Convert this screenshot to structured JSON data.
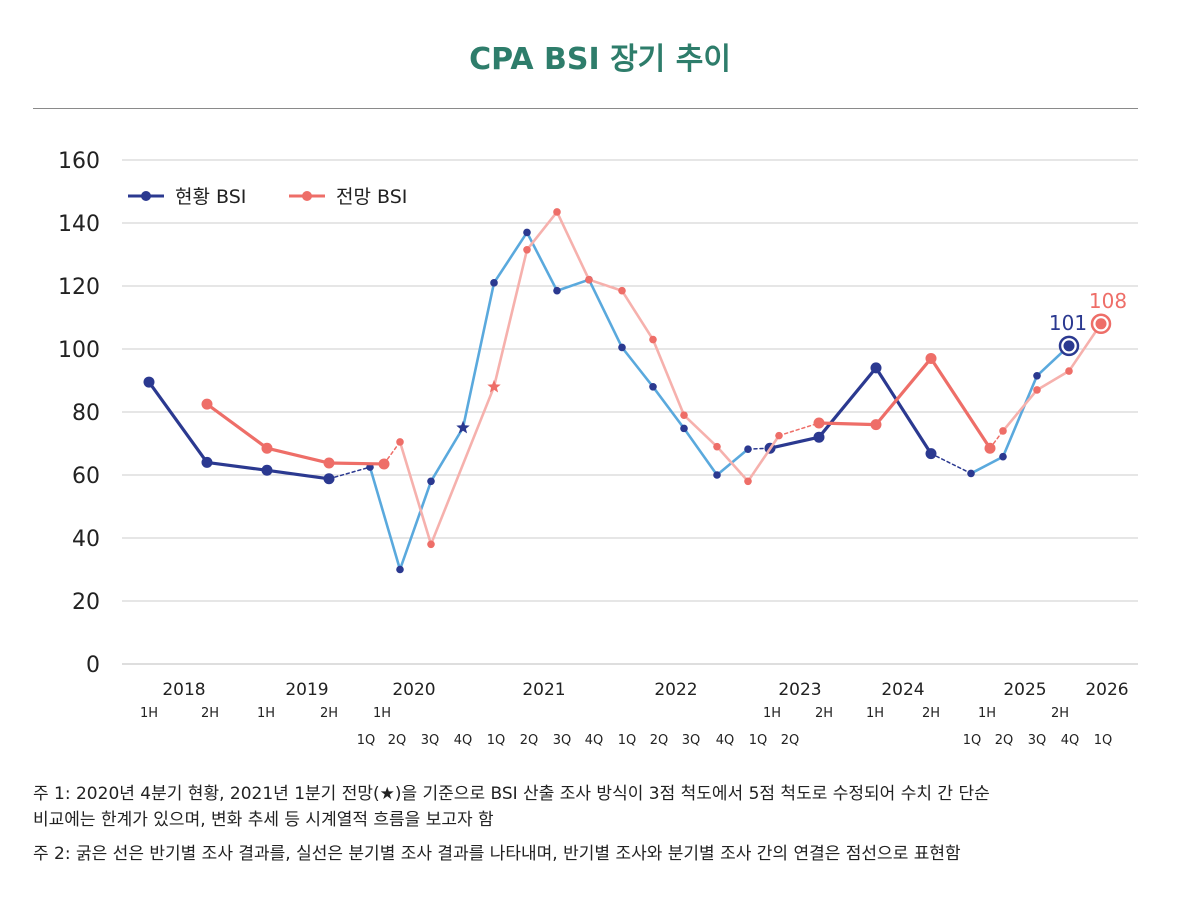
{
  "title": "CPA BSI 장기 추이",
  "colors": {
    "title": "#2e7d6b",
    "current_thick": "#2b3990",
    "current_quarter": "#5aa9dd",
    "outlook_thick": "#ee6e68",
    "outlook_quarter": "#f6b1ad",
    "grid": "#cccccc"
  },
  "notes": {
    "note1_line1": "주 1: 2020년 4분기 현황, 2021년 1분기 전망(★)을 기준으로 BSI 산출 조사 방식이 3점 척도에서 5점 척도로 수정되어 수치 간 단순",
    "note1_line2": "비교에는 한계가 있으며, 변화 추세 등 시계열적 흐름을 보고자 함",
    "note2": "주 2: 굵은 선은 반기별 조사 결과를, 실선은 분기별 조사 결과를 나타내며, 반기별 조사와 분기별 조사 간의 연결은 점선으로 표현함"
  },
  "chart_data": {
    "type": "line",
    "title": "CPA BSI 장기 추이",
    "ylim": [
      0,
      160
    ],
    "yticks": [
      "0",
      "20",
      "40",
      "60",
      "80",
      "100",
      "120",
      "140",
      "160"
    ],
    "grid": true,
    "legend_position": "top-left",
    "x_years": [
      "2018",
      "2019",
      "2020",
      "2021",
      "2022",
      "2023",
      "2024",
      "2025",
      "2026"
    ],
    "x_sub_labels": {
      "half_row": [
        "1H",
        "2H",
        "1H",
        "2H",
        "1H",
        "1H",
        "2H",
        "1H",
        "2H",
        "1H",
        "2H"
      ],
      "quarter_row": [
        "1Q",
        "2Q",
        "3Q",
        "4Q",
        "1Q",
        "2Q",
        "3Q",
        "4Q",
        "1Q",
        "2Q",
        "3Q",
        "4Q",
        "1Q",
        "2Q",
        "1Q",
        "2Q",
        "3Q",
        "4Q",
        "1Q"
      ]
    },
    "series": [
      {
        "name": "현황 BSI",
        "points": [
          {
            "x": "2018 1H",
            "y": 89.5,
            "kind": "half"
          },
          {
            "x": "2018 2H",
            "y": 64,
            "kind": "half"
          },
          {
            "x": "2019 1H",
            "y": 61.5,
            "kind": "half"
          },
          {
            "x": "2019 2H",
            "y": 58.8,
            "kind": "half"
          },
          {
            "x": "2020 1Q",
            "y": 62.5,
            "kind": "quarter"
          },
          {
            "x": "2020 2Q",
            "y": 30,
            "kind": "quarter"
          },
          {
            "x": "2020 3Q",
            "y": 58,
            "kind": "quarter"
          },
          {
            "x": "2020 4Q",
            "y": 75,
            "kind": "quarter",
            "marker": "star"
          },
          {
            "x": "2021 1Q",
            "y": 121,
            "kind": "quarter"
          },
          {
            "x": "2021 2Q",
            "y": 137,
            "kind": "quarter"
          },
          {
            "x": "2021 3Q",
            "y": 118.5,
            "kind": "quarter"
          },
          {
            "x": "2021 4Q",
            "y": 122,
            "kind": "quarter"
          },
          {
            "x": "2022 1Q",
            "y": 100.5,
            "kind": "quarter"
          },
          {
            "x": "2022 2Q",
            "y": 88,
            "kind": "quarter"
          },
          {
            "x": "2022 3Q",
            "y": 74.8,
            "kind": "quarter"
          },
          {
            "x": "2022 4Q",
            "y": 60,
            "kind": "quarter"
          },
          {
            "x": "2023 1Q",
            "y": 68.2,
            "kind": "quarter"
          },
          {
            "x": "2023 1H",
            "y": 68.5,
            "kind": "half"
          },
          {
            "x": "2023 2H",
            "y": 72,
            "kind": "half"
          },
          {
            "x": "2024 1H",
            "y": 94,
            "kind": "half"
          },
          {
            "x": "2024 2H",
            "y": 66.8,
            "kind": "half"
          },
          {
            "x": "2025 1Q",
            "y": 60.5,
            "kind": "quarter"
          },
          {
            "x": "2025 2Q",
            "y": 65.8,
            "kind": "quarter"
          },
          {
            "x": "2025 3Q",
            "y": 91.5,
            "kind": "quarter"
          },
          {
            "x": "2025 4Q",
            "y": 101,
            "kind": "quarter",
            "label": "101"
          }
        ]
      },
      {
        "name": "전망 BSI",
        "points": [
          {
            "x": "2018 2H",
            "y": 82.5,
            "kind": "half"
          },
          {
            "x": "2019 1H",
            "y": 68.5,
            "kind": "half"
          },
          {
            "x": "2019 2H",
            "y": 63.8,
            "kind": "half"
          },
          {
            "x": "2020 1H",
            "y": 63.5,
            "kind": "half"
          },
          {
            "x": "2020 2Q",
            "y": 70.5,
            "kind": "quarter"
          },
          {
            "x": "2020 3Q",
            "y": 38,
            "kind": "quarter"
          },
          {
            "x": "2021 1Q",
            "y": 88,
            "kind": "quarter",
            "marker": "star"
          },
          {
            "x": "2021 2Q",
            "y": 131.5,
            "kind": "quarter"
          },
          {
            "x": "2021 3Q",
            "y": 143.5,
            "kind": "quarter"
          },
          {
            "x": "2021 4Q",
            "y": 122,
            "kind": "quarter"
          },
          {
            "x": "2022 1Q",
            "y": 118.5,
            "kind": "quarter"
          },
          {
            "x": "2022 2Q",
            "y": 103,
            "kind": "quarter"
          },
          {
            "x": "2022 3Q",
            "y": 79,
            "kind": "quarter"
          },
          {
            "x": "2022 4Q",
            "y": 69,
            "kind": "quarter"
          },
          {
            "x": "2023 1Q",
            "y": 58,
            "kind": "quarter"
          },
          {
            "x": "2023 2Q",
            "y": 72.5,
            "kind": "quarter"
          },
          {
            "x": "2023 2H",
            "y": 76.5,
            "kind": "half"
          },
          {
            "x": "2024 1H",
            "y": 76,
            "kind": "half"
          },
          {
            "x": "2024 2H",
            "y": 97,
            "kind": "half"
          },
          {
            "x": "2025 1H",
            "y": 68.5,
            "kind": "half"
          },
          {
            "x": "2025 2Q",
            "y": 74,
            "kind": "quarter"
          },
          {
            "x": "2025 3Q",
            "y": 87,
            "kind": "quarter"
          },
          {
            "x": "2025 4Q",
            "y": 93,
            "kind": "quarter"
          },
          {
            "x": "2026 1Q",
            "y": 108,
            "kind": "quarter",
            "label": "108"
          }
        ]
      }
    ]
  }
}
